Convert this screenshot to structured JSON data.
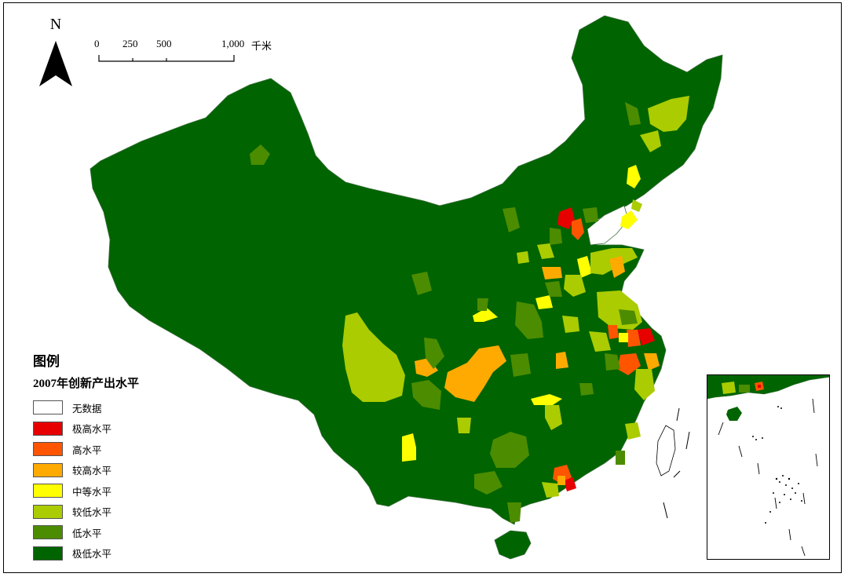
{
  "map": {
    "north_label": "N",
    "scale": {
      "ticks": [
        "0",
        "250",
        "500",
        "1,000"
      ],
      "unit": "千米"
    },
    "legend": {
      "title": "图例",
      "subtitle": "2007年创新产出水平",
      "items": [
        {
          "label": "无数据",
          "color": "#ffffff"
        },
        {
          "label": "极高水平",
          "color": "#e60000"
        },
        {
          "label": "高水平",
          "color": "#ff5500"
        },
        {
          "label": "较高水平",
          "color": "#ffaa00"
        },
        {
          "label": "中等水平",
          "color": "#ffff00"
        },
        {
          "label": "较低水平",
          "color": "#aacc00"
        },
        {
          "label": "低水平",
          "color": "#4c8c00"
        },
        {
          "label": "极低水平",
          "color": "#006400"
        }
      ]
    }
  }
}
